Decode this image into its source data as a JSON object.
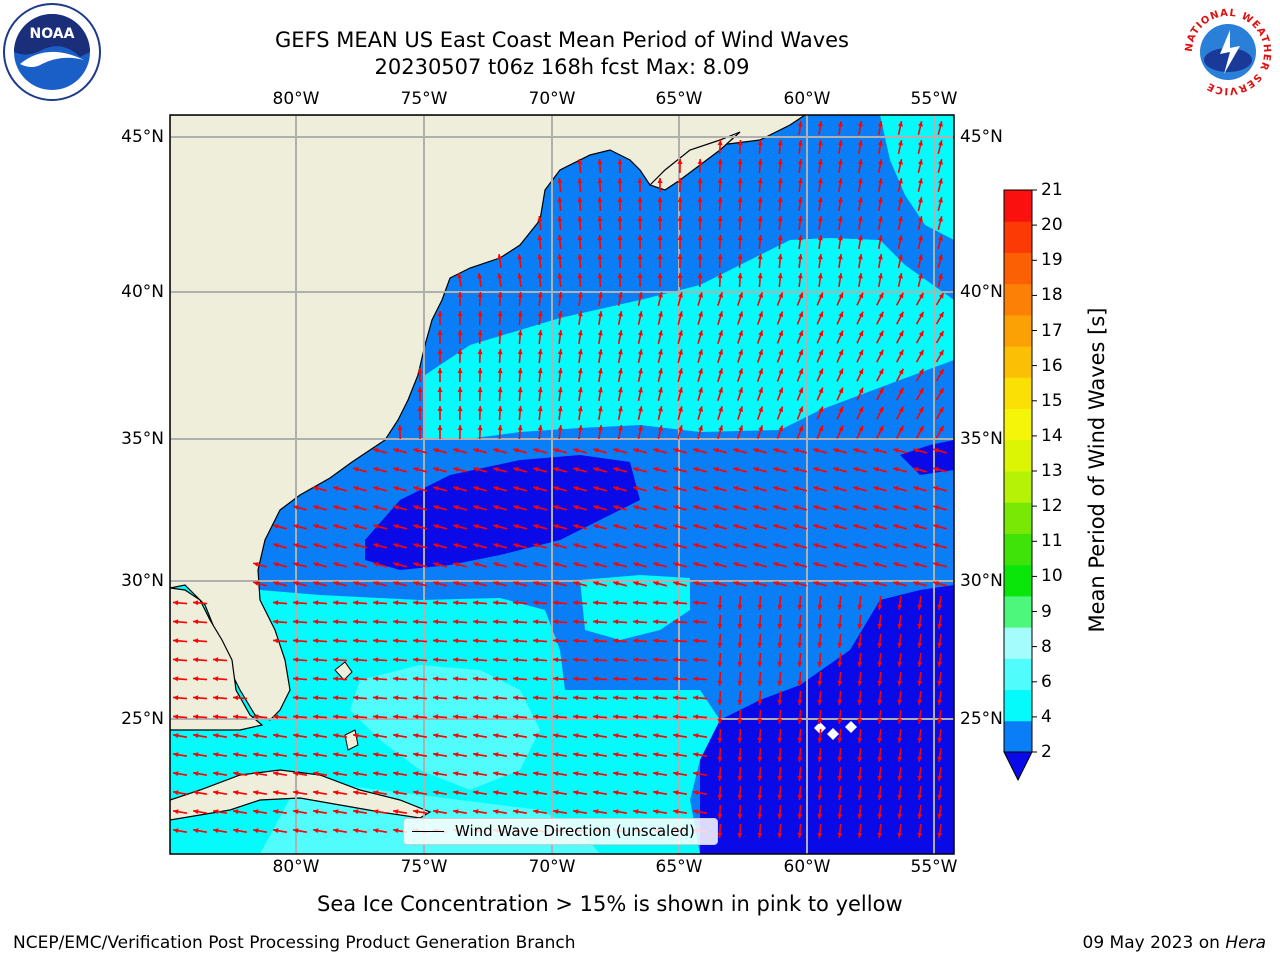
{
  "header": {
    "title_line1": "GEFS MEAN US East Coast Mean Period of Wind Waves",
    "title_line2": "20230507 t06z 168h fcst   Max: 8.09",
    "left_logo_text": "NOAA",
    "right_logo_text": "NATIONAL WEATHER SERVICE"
  },
  "map": {
    "lon_labels": [
      "80°W",
      "75°W",
      "70°W",
      "65°W",
      "60°W",
      "55°W"
    ],
    "lat_labels": [
      "45°N",
      "40°N",
      "35°N",
      "30°N",
      "25°N"
    ],
    "legend_label": "Wind Wave Direction (unscaled)",
    "colors": {
      "land": "#efeedb",
      "ocean_2_4": "#0a7ef7",
      "ocean_below_2": "#0a0ae8",
      "ocean_4_6": "#05fbfb",
      "ocean_6_8": "#50fcfc",
      "ocean_8_9": "#a5fcfc",
      "arrow": "#ff0000",
      "grid": "#b0b0b0"
    },
    "max_value": 8.09
  },
  "colorbar": {
    "label": "Mean Period of Wind Waves [s]",
    "ticks": [
      "21",
      "20",
      "19",
      "18",
      "17",
      "16",
      "15",
      "14",
      "13",
      "12",
      "11",
      "10",
      "9",
      "8",
      "6",
      "4",
      "2"
    ],
    "bands": [
      {
        "color": "#0a7ef7"
      },
      {
        "color": "#05fbfb"
      },
      {
        "color": "#50fcfc"
      },
      {
        "color": "#a5fcfc"
      },
      {
        "color": "#4cf77c"
      },
      {
        "color": "#0ae60a"
      },
      {
        "color": "#3fe30a"
      },
      {
        "color": "#7ae805"
      },
      {
        "color": "#b5f205"
      },
      {
        "color": "#dcf505"
      },
      {
        "color": "#f5f50a"
      },
      {
        "color": "#fbe005"
      },
      {
        "color": "#fbc005"
      },
      {
        "color": "#fba005"
      },
      {
        "color": "#fb8005"
      },
      {
        "color": "#fb6005"
      },
      {
        "color": "#fb3a05"
      },
      {
        "color": "#fb1010"
      }
    ],
    "under_color": "#0a0ae8"
  },
  "footer": {
    "sea_ice_note": "Sea Ice Concentration > 15% is shown in pink to yellow",
    "branch": "NCEP/EMC/Verification Post Processing Product Generation Branch",
    "date_prefix": "09 May 2023 on ",
    "machine": "Hera"
  }
}
